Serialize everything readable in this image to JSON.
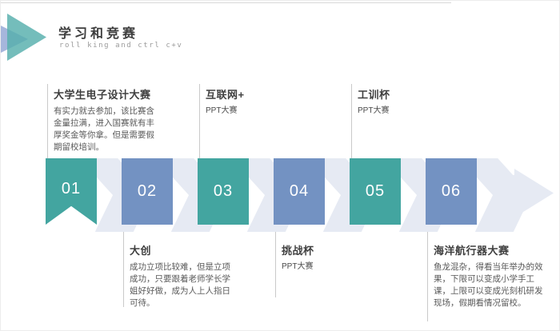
{
  "header": {
    "title": "学习和竞赛",
    "subtitle": "roll king and ctrl c+v",
    "logo_icon": "play-triangles-icon"
  },
  "colors": {
    "teal": "#43a5a0",
    "blue": "#7392c2",
    "chevron_light": "#e6eaf3",
    "logo_blue": "#97a9d6",
    "logo_teal": "#55afac",
    "title_text": "#3d3d3d",
    "body_text": "#595959",
    "connector_line": "#c9c9c9",
    "step_number_text": "#ffffff"
  },
  "timeline": {
    "steps": [
      {
        "num": "01",
        "color": "teal"
      },
      {
        "num": "02",
        "color": "blue"
      },
      {
        "num": "03",
        "color": "teal"
      },
      {
        "num": "04",
        "color": "blue"
      },
      {
        "num": "05",
        "color": "teal"
      },
      {
        "num": "06",
        "color": "blue"
      }
    ],
    "top_notes": [
      {
        "title": "大学生电子设计大赛",
        "body": "有实力就去参加，该比赛含金量拉满，进入国赛就有丰厚奖金等你拿。但是需要假期留校培训。"
      },
      {
        "title": "互联网+",
        "body": "PPT大赛"
      },
      {
        "title": "工训杯",
        "body": "PPT大赛"
      }
    ],
    "bottom_notes": [
      {
        "title": "大创",
        "body": "成功立项比较难，但是立项成功，只要跟着老师学长学姐好好做，成为人上人指日可待。"
      },
      {
        "title": "挑战杯",
        "body": "PPT大赛"
      },
      {
        "title": "海洋航行器大赛",
        "body": "鱼龙混杂，得看当年举办的效果，下限可以变成小学手工课，上限可以变成光刻机研发现场，假期看情况留校。"
      }
    ]
  }
}
